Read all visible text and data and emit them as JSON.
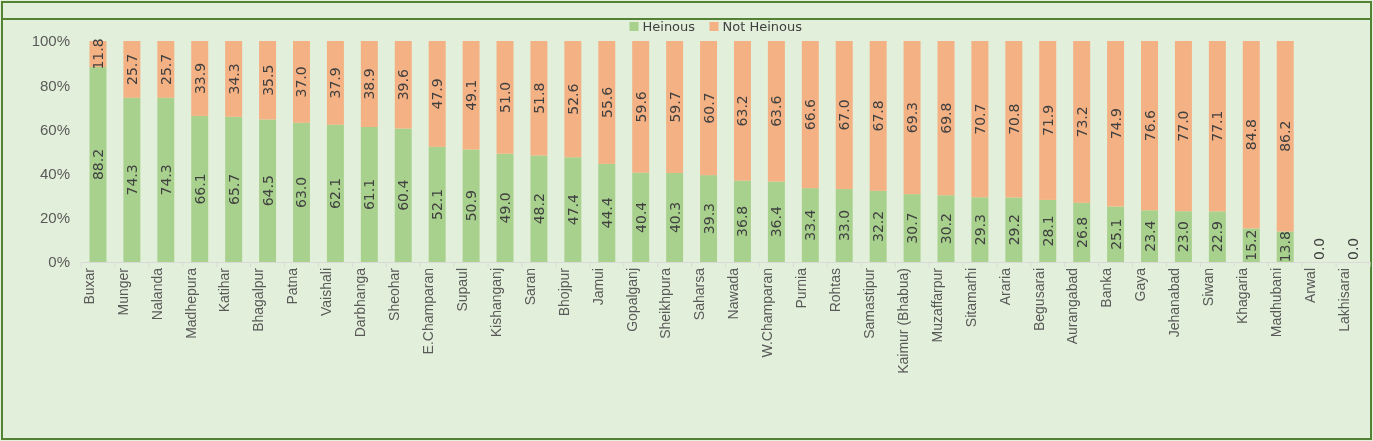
{
  "chart_data": {
    "type": "bar",
    "stacked": true,
    "legend": "top",
    "categories": [
      "Buxar",
      "Munger",
      "Nalanda",
      "Madhepura",
      "Katihar",
      "Bhagalpur",
      "Patna",
      "Vaishali",
      "Darbhanga",
      "Sheohar",
      "E.Champaran",
      "Supaul",
      "Kishanganj",
      "Saran",
      "Bhojpur",
      "Jamui",
      "Gopalganj",
      "Sheikhpura",
      "Saharsa",
      "Nawada",
      "W.Champaran",
      "Purnia",
      "Rohtas",
      "Samastipur",
      "Kaimur (Bhabua)",
      "Muzaffarpur",
      "Sitamarhi",
      "Araria",
      "Begusarai",
      "Aurangabad",
      "Banka",
      "Gaya",
      "Jehanabad",
      "Siwan",
      "Khagaria",
      "Madhubani",
      "Arwal",
      "Lakhisarai"
    ],
    "ylim": [
      0,
      100
    ],
    "yticks": [
      {
        "value": 0,
        "label": "0%"
      },
      {
        "value": 20,
        "label": "20%"
      },
      {
        "value": 40,
        "label": "40%"
      },
      {
        "value": 60,
        "label": "60%"
      },
      {
        "value": 80,
        "label": "80%"
      },
      {
        "value": 100,
        "label": "100%"
      }
    ],
    "series": [
      {
        "name": "Heinous",
        "color": "#a9d18e",
        "values": [
          88.2,
          74.3,
          74.3,
          66.1,
          65.7,
          64.5,
          63.0,
          62.1,
          61.1,
          60.4,
          52.1,
          50.9,
          49.0,
          48.2,
          47.4,
          44.4,
          40.4,
          40.3,
          39.3,
          36.8,
          36.4,
          33.4,
          33.0,
          32.2,
          30.7,
          30.2,
          29.3,
          29.2,
          28.1,
          26.8,
          25.1,
          23.4,
          23.0,
          22.9,
          15.2,
          13.8,
          0,
          0
        ],
        "value_labels": [
          "88.2",
          "74.3",
          "74.3",
          "66.1",
          "65.7",
          "64.5",
          "63.0",
          "62.1",
          "61.1",
          "60.4",
          "52.1",
          "50.9",
          "49.0",
          "48.2",
          "47.4",
          "44.4",
          "40.4",
          "40.3",
          "39.3",
          "36.8",
          "36.4",
          "33.4",
          "33.0",
          "32.2",
          "30.7",
          "30.2",
          "29.3",
          "29.2",
          "28.1",
          "26.8",
          "25.1",
          "23.4",
          "23.0",
          "22.9",
          "15.2",
          "13.8",
          "0.0",
          "0.0"
        ]
      },
      {
        "name": "Not Heinous",
        "color": "#f4b183",
        "values": [
          11.8,
          25.7,
          25.7,
          33.9,
          34.3,
          35.5,
          37.0,
          37.9,
          38.9,
          39.6,
          47.9,
          49.1,
          51.0,
          51.8,
          52.6,
          55.6,
          59.6,
          59.7,
          60.7,
          63.2,
          63.6,
          66.6,
          67.0,
          67.8,
          69.3,
          69.8,
          70.7,
          70.8,
          71.9,
          73.2,
          74.9,
          76.6,
          77.0,
          77.1,
          84.8,
          86.2,
          0,
          0
        ],
        "value_labels": [
          "11.8",
          "25.7",
          "25.7",
          "33.9",
          "34.3",
          "35.5",
          "37.0",
          "37.9",
          "38.9",
          "39.6",
          "47.9",
          "49.1",
          "51.0",
          "51.8",
          "52.6",
          "55.6",
          "59.6",
          "59.7",
          "60.7",
          "63.2",
          "63.6",
          "66.6",
          "67.0",
          "67.8",
          "69.3",
          "69.8",
          "70.7",
          "70.8",
          "71.9",
          "73.2",
          "74.9",
          "76.6",
          "77.0",
          "77.1",
          "84.8",
          "86.2",
          null,
          null
        ]
      }
    ]
  }
}
